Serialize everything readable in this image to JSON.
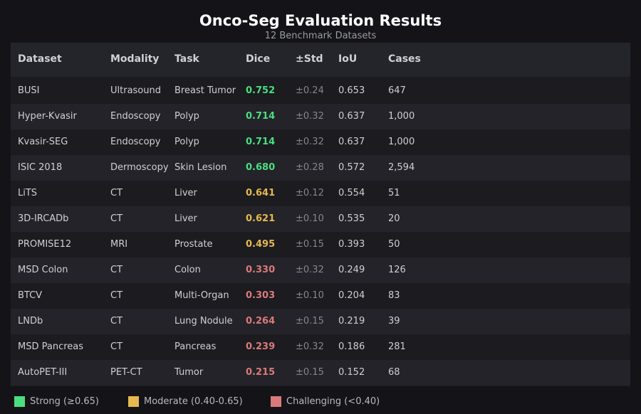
{
  "header": {
    "title": "Onco-Seg Evaluation Results",
    "subtitle": "12 Benchmark Datasets"
  },
  "table": {
    "columns": [
      "Dataset",
      "Modality",
      "Task",
      "Dice",
      "±Std",
      "IoU",
      "Cases"
    ],
    "rows": [
      [
        "BUSI",
        "Ultrasound",
        "Breast Tumor",
        "0.752",
        "±0.24",
        "0.653",
        "647"
      ],
      [
        "Hyper-Kvasir",
        "Endoscopy",
        "Polyp",
        "0.714",
        "±0.32",
        "0.637",
        "1,000"
      ],
      [
        "Kvasir-SEG",
        "Endoscopy",
        "Polyp",
        "0.714",
        "±0.32",
        "0.637",
        "1,000"
      ],
      [
        "ISIC 2018",
        "Dermoscopy",
        "Skin Lesion",
        "0.680",
        "±0.28",
        "0.572",
        "2,594"
      ],
      [
        "LiTS",
        "CT",
        "Liver",
        "0.641",
        "±0.12",
        "0.554",
        "51"
      ],
      [
        "3D-IRCADb",
        "CT",
        "Liver",
        "0.621",
        "±0.10",
        "0.535",
        "20"
      ],
      [
        "PROMISE12",
        "MRI",
        "Prostate",
        "0.495",
        "±0.15",
        "0.393",
        "50"
      ],
      [
        "MSD Colon",
        "CT",
        "Colon",
        "0.330",
        "±0.32",
        "0.249",
        "126"
      ],
      [
        "BTCV",
        "CT",
        "Multi-Organ",
        "0.303",
        "±0.10",
        "0.204",
        "83"
      ],
      [
        "LNDb",
        "CT",
        "Lung Nodule",
        "0.264",
        "±0.15",
        "0.219",
        "39"
      ],
      [
        "MSD Pancreas",
        "CT",
        "Pancreas",
        "0.239",
        "±0.32",
        "0.186",
        "281"
      ],
      [
        "AutoPET-III",
        "PET-CT",
        "Tumor",
        "0.215",
        "±0.15",
        "0.152",
        "68"
      ]
    ],
    "dice_colors": [
      "#4ade80",
      "#4ade80",
      "#4ade80",
      "#4ade80",
      "#e6b84f",
      "#e6b84f",
      "#e6b84f",
      "#d97a7a",
      "#d97a7a",
      "#d97a7a",
      "#d97a7a",
      "#d97a7a"
    ]
  },
  "legend": [
    {
      "label": "Strong (≥0.65)",
      "color": "#4ade80"
    },
    {
      "label": "Moderate (0.40-0.65)",
      "color": "#e6b84f"
    },
    {
      "label": "Challenging (<0.40)",
      "color": "#d97a7a"
    }
  ]
}
